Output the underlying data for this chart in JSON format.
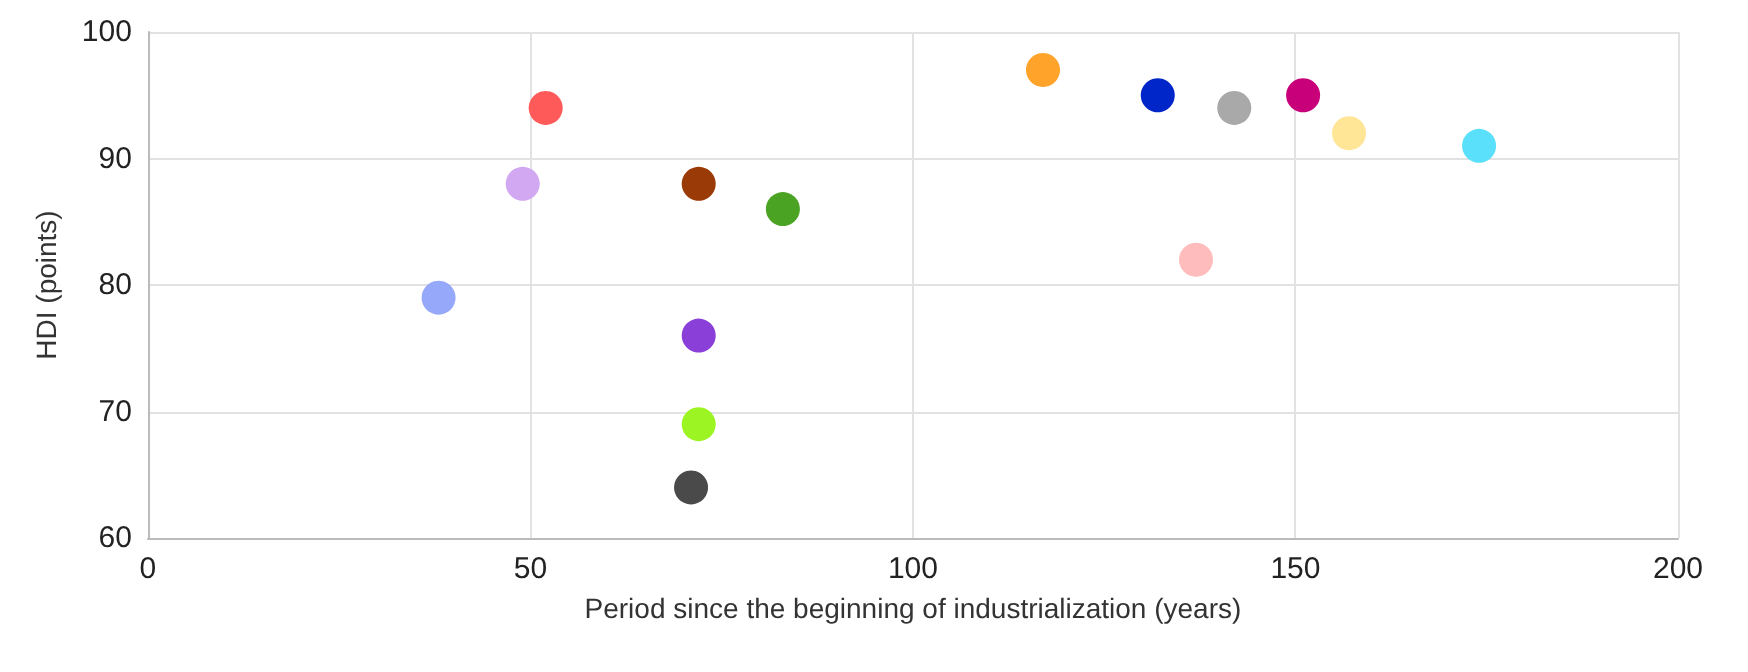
{
  "chart_data": {
    "type": "scatter",
    "xlabel": "Period since the beginning of industrialization (years)",
    "ylabel": "HDI (points)",
    "x": [
      38,
      49,
      52,
      72,
      83,
      72,
      72,
      71,
      117,
      132,
      137,
      142,
      151,
      157,
      174
    ],
    "values": [
      79,
      88,
      94,
      88,
      86,
      76,
      69,
      64,
      97,
      95,
      82,
      94,
      95,
      92,
      91
    ],
    "colors": [
      "#96a8fa",
      "#d2a8f2",
      "#ff5a5a",
      "#9a3a06",
      "#4aa323",
      "#8b3fd9",
      "#9cf522",
      "#4a4a4a",
      "#ffa32a",
      "#0025c8",
      "#ffbcbc",
      "#a9a9a9",
      "#c8007a",
      "#ffe596",
      "#5ae0fa"
    ],
    "marker": "circle",
    "xlim": [
      0,
      200
    ],
    "xticks": [
      0,
      50,
      100,
      150,
      200
    ],
    "ylim": [
      60,
      100
    ],
    "yticks": [
      60,
      70,
      80,
      90,
      100
    ],
    "grid": true
  }
}
